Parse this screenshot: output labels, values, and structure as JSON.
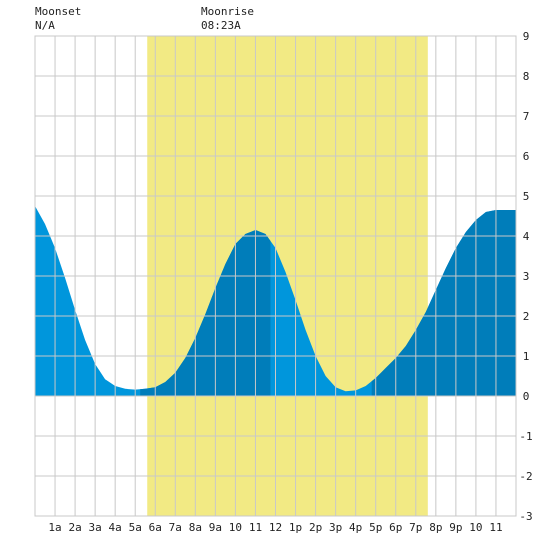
{
  "header": {
    "moonset_label": "Moonset",
    "moonset_time": "N/A",
    "moonrise_label": "Moonrise",
    "moonrise_time": "08:23A"
  },
  "chart_data": {
    "type": "area",
    "title": "",
    "xlabel": "",
    "ylabel": "",
    "x_range": [
      0,
      24
    ],
    "ylim": [
      -3,
      9
    ],
    "y_ticks": [
      -3,
      -2,
      -1,
      0,
      1,
      2,
      3,
      4,
      5,
      6,
      7,
      8,
      9
    ],
    "x_tick_labels": [
      "1a",
      "2a",
      "3a",
      "4a",
      "5a",
      "6a",
      "7a",
      "8a",
      "9a",
      "10",
      "11",
      "12",
      "1p",
      "2p",
      "3p",
      "4p",
      "5p",
      "6p",
      "7p",
      "8p",
      "9p",
      "10",
      "11"
    ],
    "x_tick_hours": [
      1,
      2,
      3,
      4,
      5,
      6,
      7,
      8,
      9,
      10,
      11,
      12,
      13,
      14,
      15,
      16,
      17,
      18,
      19,
      20,
      21,
      22,
      23
    ],
    "daylight_hours": [
      5.6,
      19.6
    ],
    "grid": true,
    "colors": {
      "daylight": "#f2ea84",
      "night": "#ffffff",
      "tide_day": "#0096dc",
      "tide_night": "#007dba",
      "grid": "#c8c8c8",
      "axis_text": "#222222"
    },
    "series": [
      {
        "points": [
          [
            0,
            4.75
          ],
          [
            0.5,
            4.3
          ],
          [
            1,
            3.7
          ],
          [
            1.5,
            2.95
          ],
          [
            2,
            2.15
          ],
          [
            2.5,
            1.4
          ],
          [
            3,
            0.8
          ],
          [
            3.5,
            0.42
          ],
          [
            4,
            0.25
          ],
          [
            4.5,
            0.18
          ],
          [
            5,
            0.16
          ],
          [
            5.5,
            0.18
          ],
          [
            6,
            0.22
          ],
          [
            6.5,
            0.35
          ],
          [
            7,
            0.58
          ],
          [
            7.5,
            0.95
          ],
          [
            8,
            1.45
          ],
          [
            8.5,
            2.05
          ],
          [
            9,
            2.7
          ],
          [
            9.5,
            3.3
          ],
          [
            10,
            3.8
          ],
          [
            10.5,
            4.05
          ],
          [
            11,
            4.15
          ],
          [
            11.5,
            4.05
          ],
          [
            12,
            3.7
          ],
          [
            12.5,
            3.1
          ],
          [
            13,
            2.4
          ],
          [
            13.5,
            1.65
          ],
          [
            14,
            1.0
          ],
          [
            14.5,
            0.5
          ],
          [
            15,
            0.22
          ],
          [
            15.5,
            0.12
          ],
          [
            16,
            0.14
          ],
          [
            16.5,
            0.25
          ],
          [
            17,
            0.45
          ],
          [
            17.5,
            0.7
          ],
          [
            18,
            0.95
          ],
          [
            18.5,
            1.25
          ],
          [
            19,
            1.65
          ],
          [
            19.5,
            2.1
          ],
          [
            20,
            2.65
          ],
          [
            20.5,
            3.2
          ],
          [
            21,
            3.7
          ],
          [
            21.5,
            4.1
          ],
          [
            22,
            4.4
          ],
          [
            22.5,
            4.6
          ],
          [
            23,
            4.65
          ],
          [
            23.5,
            4.65
          ],
          [
            24,
            4.65
          ]
        ]
      }
    ]
  }
}
